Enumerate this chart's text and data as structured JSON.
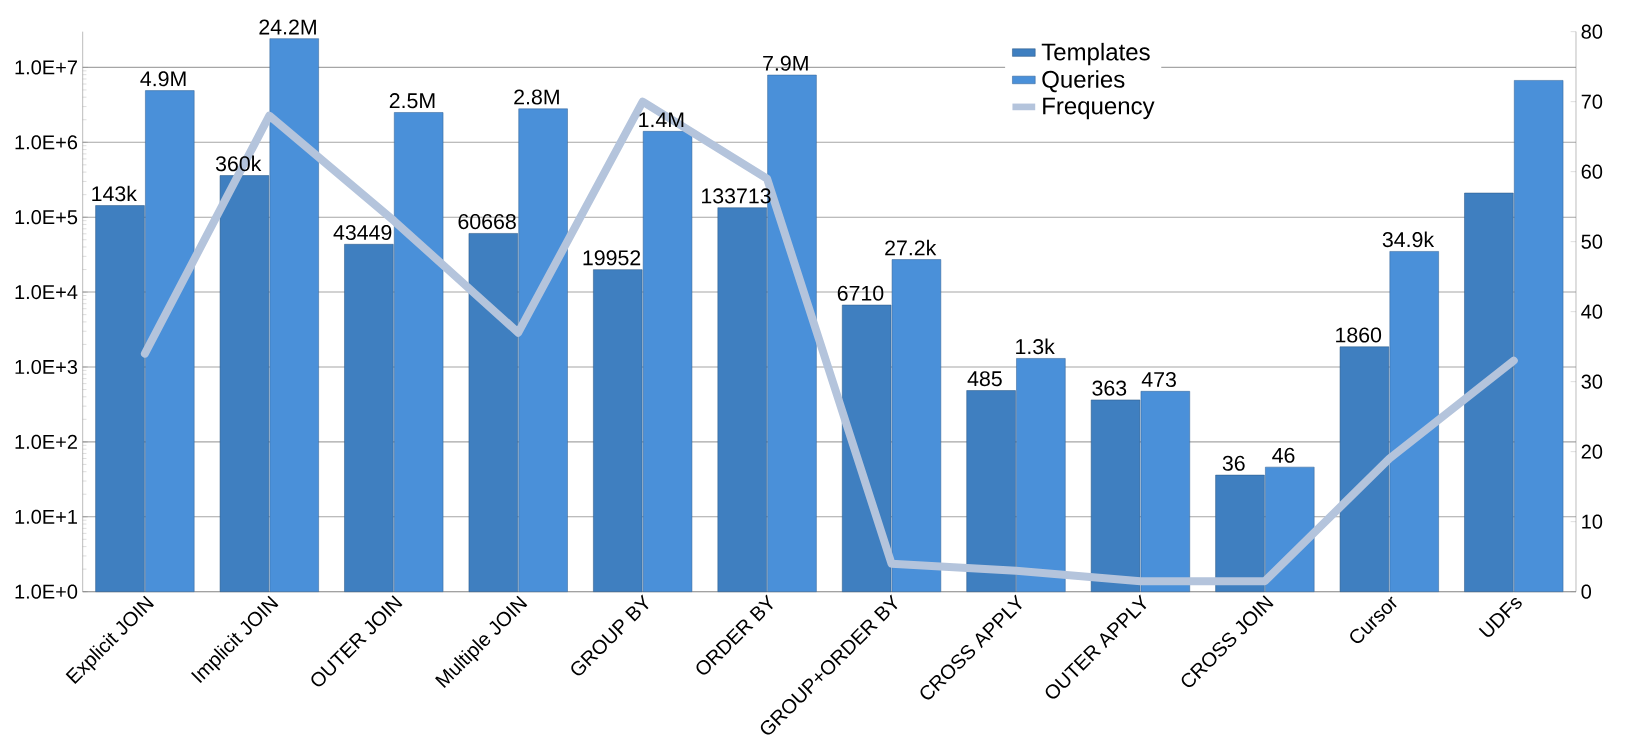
{
  "chart_data": {
    "type": "bar",
    "categories": [
      "Explicit JOIN",
      "Implicit JOIN",
      "OUTER JOIN",
      "Multiple JOIN",
      "GROUP BY",
      "ORDER BY",
      "GROUP+ORDER BY",
      "CROSS APPLY",
      "OUTER APPLY",
      "CROSS JOIN",
      "Cursor",
      "UDFs"
    ],
    "series": [
      {
        "name": "Templates",
        "color": "#3f7fc0",
        "values": [
          143000,
          360000,
          43449,
          60668,
          19952,
          133713,
          6710,
          485,
          363,
          36,
          1860,
          210000
        ],
        "value_labels": [
          "143k",
          "360k",
          "43449",
          "60668",
          "19952",
          "133713",
          "6710",
          "485",
          "363",
          "36",
          "1860",
          null
        ]
      },
      {
        "name": "Queries",
        "color": "#4a90d9",
        "values": [
          4900000,
          24200000,
          2500000,
          2800000,
          1400000,
          7900000,
          27200,
          1300,
          473,
          46,
          34900,
          6700000
        ],
        "value_labels": [
          "4.9M",
          "24.2M",
          "2.5M",
          "2.8M",
          "1.4M",
          "7.9M",
          "27.2k",
          "1.3k",
          "473",
          "46",
          "34.9k",
          null
        ]
      },
      {
        "name": "Frequency",
        "type": "line",
        "axis": "y2",
        "color": "#b4c4dc",
        "values": [
          34,
          68,
          53,
          37,
          70,
          59,
          4,
          3,
          1.5,
          1.5,
          19,
          33
        ]
      }
    ],
    "log": "y",
    "ylim": [
      1,
      30000000
    ],
    "yticks": [
      {
        "value": 1,
        "label": "1.0E+0"
      },
      {
        "value": 10,
        "label": "1.0E+1"
      },
      {
        "value": 100,
        "label": "1.0E+2"
      },
      {
        "value": 1000,
        "label": "1.0E+3"
      },
      {
        "value": 10000,
        "label": "1.0E+4"
      },
      {
        "value": 100000,
        "label": "1.0E+5"
      },
      {
        "value": 1000000,
        "label": "1.0E+6"
      },
      {
        "value": 10000000,
        "label": "1.0E+7"
      }
    ],
    "y2lim": [
      0,
      80
    ],
    "y2ticks": [
      0,
      10,
      20,
      30,
      40,
      50,
      60,
      70,
      80
    ],
    "grid": "y",
    "legend": "top",
    "marker": "none",
    "line_style": "solid"
  }
}
